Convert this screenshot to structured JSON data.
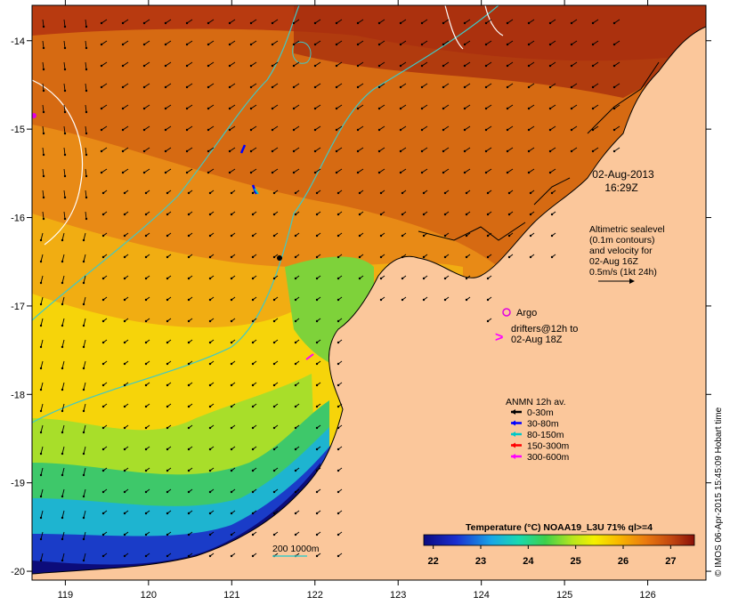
{
  "map": {
    "lon_range": [
      118.6,
      126.7
    ],
    "lat_range": [
      -20.1,
      -13.6
    ],
    "lon_ticks": [
      "119",
      "120",
      "121",
      "122",
      "123",
      "124",
      "125",
      "126"
    ],
    "lat_ticks": [
      "-14",
      "-15",
      "-16",
      "-17",
      "-18",
      "-19",
      "-20"
    ],
    "land_color": "#fbc79b",
    "contour_color_bathy": "#3fc9c6",
    "contour_color_sealevel": "#ffffff"
  },
  "datetime": {
    "date": "02-Aug-2013",
    "time": "16:29Z"
  },
  "altimetry_note": {
    "lines": [
      "Altimetric sealevel",
      "(0.1m contours)",
      "and velocity for",
      "02-Aug 16Z",
      "0.5m/s (1kt 24h)"
    ]
  },
  "argo": {
    "label": "Argo",
    "color": "#e000e0"
  },
  "drifters": {
    "lines": [
      "drifters@12h to",
      "02-Aug 18Z"
    ],
    "symbol": ">",
    "color": "#ff00ff"
  },
  "anmn": {
    "title": "ANMN 12h av.",
    "items": [
      {
        "label": "0-30m",
        "color": "#000000"
      },
      {
        "label": "30-80m",
        "color": "#0000ff"
      },
      {
        "label": "80-150m",
        "color": "#00c8c8"
      },
      {
        "label": "150-300m",
        "color": "#ff0000"
      },
      {
        "label": "300-600m",
        "color": "#ff00ff"
      }
    ]
  },
  "depth_legend": {
    "label": "200  1000m"
  },
  "colorbar": {
    "title": "Temperature (°C) NOAA19_L3U 71% ql>=4",
    "ticks": [
      "22",
      "23",
      "24",
      "25",
      "26",
      "27"
    ],
    "range": [
      21.8,
      27.5
    ]
  },
  "credit": "© IMOS 06-Apr-2015 15:45:09 Hobart time"
}
